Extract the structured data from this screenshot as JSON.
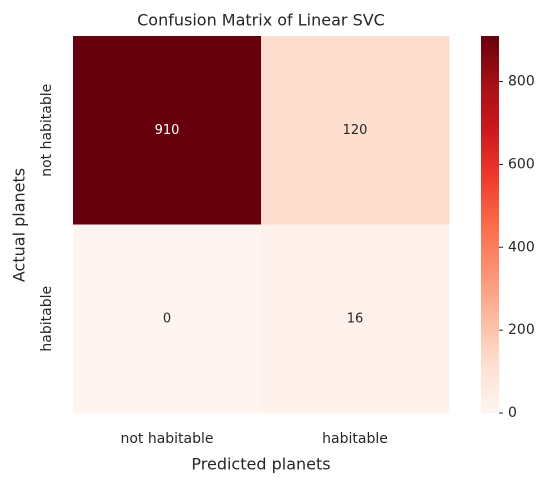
{
  "chart_data": {
    "type": "heatmap",
    "title": "Confusion Matrix of Linear SVC",
    "xlabel": "Predicted planets",
    "ylabel": "Actual planets",
    "x_categories": [
      "not habitable",
      "habitable"
    ],
    "y_categories": [
      "not habitable",
      "habitable"
    ],
    "values": [
      [
        910,
        120
      ],
      [
        0,
        16
      ]
    ],
    "colormap": "Reds",
    "clim": [
      0,
      910
    ],
    "cticks": [
      0,
      200,
      400,
      600,
      800
    ]
  }
}
